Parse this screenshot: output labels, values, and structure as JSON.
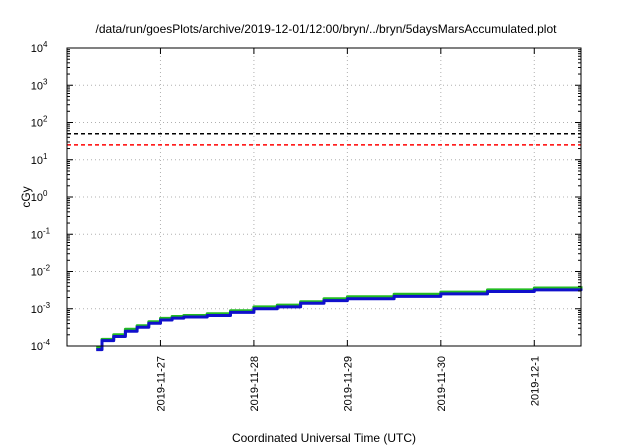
{
  "chart_data": {
    "type": "line",
    "title": "/data/run/goesPlots/archive/2019-12-01/12:00/bryn/../bryn/5daysMarsAccumulated.plot",
    "xlabel": "Coordinated Universal Time (UTC)",
    "ylabel": "cGy",
    "yscale": "log",
    "ylim": [
      0.0001,
      10000
    ],
    "xlim": [
      "2019-11-26 00:00",
      "2019-12-01 12:00"
    ],
    "grid": true,
    "x_tick_labels": [
      "2019-11-27",
      "2019-11-28",
      "2019-11-29",
      "2019-11-30",
      "2019-12-1"
    ],
    "y_ticks": [
      {
        "base": "10",
        "exp": "4"
      },
      {
        "base": "10",
        "exp": "3"
      },
      {
        "base": "10",
        "exp": "2"
      },
      {
        "base": "10",
        "exp": "1"
      },
      {
        "base": "10",
        "exp": "0"
      },
      {
        "base": "10",
        "exp": "-1"
      },
      {
        "base": "10",
        "exp": "-2"
      },
      {
        "base": "10",
        "exp": "-3"
      },
      {
        "base": "10",
        "exp": "-4"
      }
    ],
    "reference_lines": [
      {
        "y": 50,
        "color": "#000000",
        "style": "dashed"
      },
      {
        "y": 25,
        "color": "#ff0000",
        "style": "dashed"
      }
    ],
    "series": [
      {
        "color": "#22bb22",
        "x": [
          "2019-11-26 07:30",
          "2019-11-26 09:00",
          "2019-11-26 12:00",
          "2019-11-26 15:00",
          "2019-11-26 18:00",
          "2019-11-26 21:00",
          "2019-11-27 00:00",
          "2019-11-27 03:00",
          "2019-11-27 06:00",
          "2019-11-27 12:00",
          "2019-11-27 18:00",
          "2019-11-28 00:00",
          "2019-11-28 06:00",
          "2019-11-28 12:00",
          "2019-11-28 18:00",
          "2019-11-29 00:00",
          "2019-11-29 12:00",
          "2019-11-30 00:00",
          "2019-11-30 12:00",
          "2019-12-01 00:00",
          "2019-12-01 12:00"
        ],
        "y": [
          9e-05,
          0.00015,
          0.0002,
          0.00028,
          0.00035,
          0.00045,
          0.00055,
          0.00062,
          0.00066,
          0.00073,
          0.00088,
          0.00112,
          0.00125,
          0.00155,
          0.00185,
          0.0021,
          0.00245,
          0.0028,
          0.0032,
          0.0036,
          0.004
        ]
      },
      {
        "color": "#1010cc",
        "x": [
          "2019-11-26 07:30",
          "2019-11-26 09:00",
          "2019-11-26 12:00",
          "2019-11-26 15:00",
          "2019-11-26 18:00",
          "2019-11-26 21:00",
          "2019-11-27 00:00",
          "2019-11-27 03:00",
          "2019-11-27 06:00",
          "2019-11-27 12:00",
          "2019-11-27 18:00",
          "2019-11-28 00:00",
          "2019-11-28 06:00",
          "2019-11-28 12:00",
          "2019-11-28 18:00",
          "2019-11-29 00:00",
          "2019-11-29 12:00",
          "2019-11-30 00:00",
          "2019-11-30 12:00",
          "2019-12-01 00:00",
          "2019-12-01 12:00"
        ],
        "y": [
          8e-05,
          0.00014,
          0.00018,
          0.00025,
          0.00032,
          0.00041,
          0.0005,
          0.00056,
          0.0006,
          0.00066,
          0.0008,
          0.001,
          0.00112,
          0.0014,
          0.00165,
          0.00185,
          0.00215,
          0.0025,
          0.0029,
          0.0032,
          0.0035
        ]
      }
    ]
  }
}
